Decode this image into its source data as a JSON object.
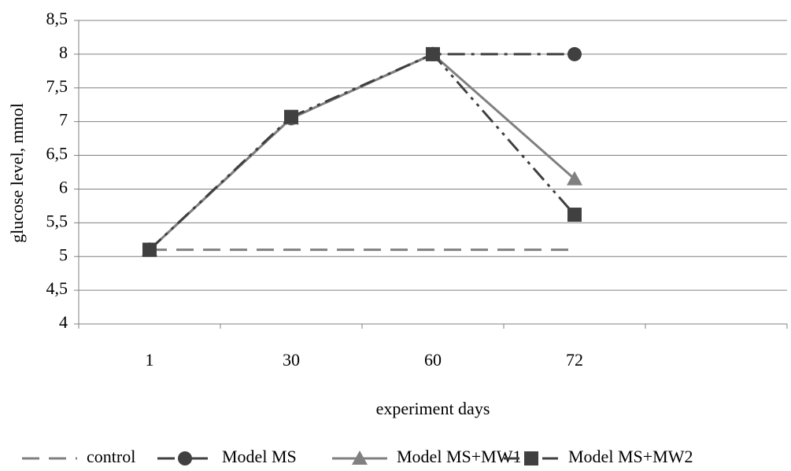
{
  "chart_data": {
    "type": "line",
    "y_axis_label": "glucose level, mmol",
    "x_axis_label": "experiment days",
    "categories": [
      "1",
      "30",
      "60",
      "72",
      null
    ],
    "series": [
      {
        "name": "control",
        "color": "#808080",
        "line_style": "dashed",
        "marker": "none",
        "values": [
          5.1,
          5.1,
          5.1,
          5.1,
          null
        ]
      },
      {
        "name": "Model MS",
        "color": "#404040",
        "line_style": "dashdot",
        "marker": "circle",
        "values": [
          5.1,
          7.05,
          8,
          8,
          null
        ]
      },
      {
        "name": "Model MS+MW1",
        "color": "#808080",
        "line_style": "solid",
        "marker": "triangle",
        "values": [
          5.1,
          7.05,
          8,
          6.15,
          null
        ]
      },
      {
        "name": "Model MS+MW2",
        "color": "#404040",
        "line_style": "dashdotdot",
        "marker": "square",
        "values": [
          5.1,
          7.07,
          8,
          5.62,
          null
        ]
      }
    ],
    "ylim": [
      4,
      8.5
    ],
    "yticks": [
      4,
      {
        "value": 4.5,
        "label": "4,5"
      },
      5,
      {
        "value": 5.5,
        "label": "5,5"
      },
      6,
      {
        "value": 6.5,
        "label": "6,5"
      },
      7,
      {
        "value": 7.5,
        "label": "7,5"
      },
      8,
      {
        "value": 8.5,
        "label": "8,5"
      }
    ],
    "grid": true,
    "legend": "bottom"
  }
}
